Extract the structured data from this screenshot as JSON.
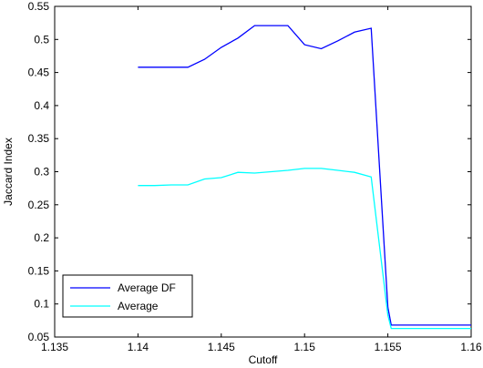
{
  "chart_data": {
    "type": "line",
    "title": "",
    "xlabel": "Cutoff",
    "ylabel": "Jaccard Index",
    "xlim": [
      1.135,
      1.16
    ],
    "ylim": [
      0.05,
      0.55
    ],
    "xticks": [
      1.135,
      1.14,
      1.145,
      1.15,
      1.155,
      1.16
    ],
    "xtick_labels": [
      "1.135",
      "1.14",
      "1.145",
      "1.15",
      "1.155",
      "1.16"
    ],
    "yticks": [
      0.05,
      0.1,
      0.15,
      0.2,
      0.25,
      0.3,
      0.35,
      0.4,
      0.45,
      0.5,
      0.55
    ],
    "ytick_labels": [
      "0.05",
      "0.1",
      "0.15",
      "0.2",
      "0.25",
      "0.3",
      "0.35",
      "0.4",
      "0.45",
      "0.5",
      "0.55"
    ],
    "grid": false,
    "legend_position": "bottom-left",
    "series": [
      {
        "name": "Average DF",
        "color": "#0000ff",
        "x": [
          1.14,
          1.143,
          1.144,
          1.145,
          1.146,
          1.147,
          1.148,
          1.149,
          1.15,
          1.151,
          1.152,
          1.153,
          1.154,
          1.155,
          1.1552,
          1.156,
          1.16
        ],
        "y": [
          0.458,
          0.458,
          0.47,
          0.488,
          0.502,
          0.521,
          0.521,
          0.521,
          0.492,
          0.486,
          0.498,
          0.511,
          0.517,
          0.095,
          0.068,
          0.068,
          0.068
        ]
      },
      {
        "name": "Average",
        "color": "#00ffff",
        "x": [
          1.14,
          1.141,
          1.142,
          1.143,
          1.144,
          1.145,
          1.146,
          1.147,
          1.148,
          1.149,
          1.15,
          1.151,
          1.152,
          1.153,
          1.154,
          1.155,
          1.1552,
          1.156,
          1.16
        ],
        "y": [
          0.279,
          0.279,
          0.28,
          0.28,
          0.289,
          0.291,
          0.299,
          0.298,
          0.3,
          0.302,
          0.305,
          0.305,
          0.302,
          0.299,
          0.292,
          0.083,
          0.063,
          0.063,
          0.063
        ]
      }
    ]
  }
}
